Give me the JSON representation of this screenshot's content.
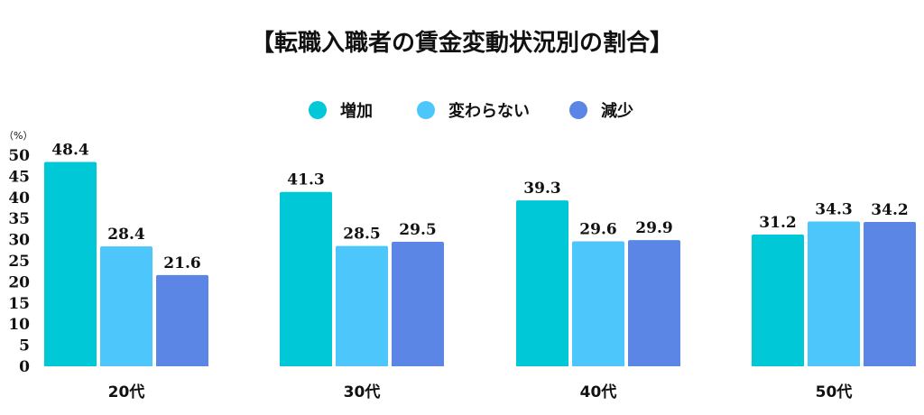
{
  "colors": {
    "series": [
      "#00c8d7",
      "#4cc6fb",
      "#5b86e5"
    ],
    "text": "#111111",
    "background": "#ffffff"
  },
  "chart_data": {
    "type": "bar",
    "title": "【転職入職者の賃金変動状況別の割合】",
    "unit": "（%）",
    "categories": [
      "20代",
      "30代",
      "40代",
      "50代"
    ],
    "series": [
      {
        "name": "増加",
        "values": [
          48.4,
          41.3,
          39.3,
          31.2
        ]
      },
      {
        "name": "変わらない",
        "values": [
          28.4,
          28.5,
          29.6,
          34.3
        ]
      },
      {
        "name": "減少",
        "values": [
          21.6,
          29.5,
          29.9,
          34.2
        ]
      }
    ],
    "ylim": [
      0,
      50
    ],
    "yticks": [
      0,
      5,
      10,
      15,
      20,
      25,
      30,
      35,
      40,
      45,
      50
    ],
    "grid": false,
    "legend_position": "top-center"
  }
}
